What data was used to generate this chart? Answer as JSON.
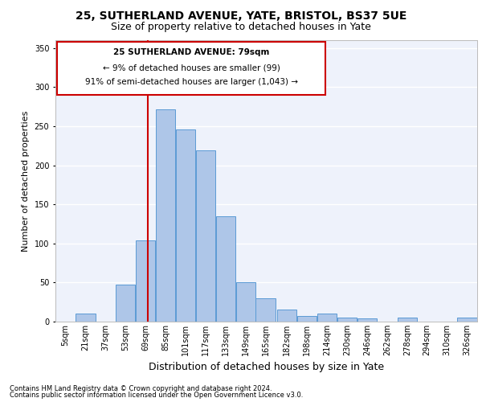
{
  "title1": "25, SUTHERLAND AVENUE, YATE, BRISTOL, BS37 5UE",
  "title2": "Size of property relative to detached houses in Yate",
  "xlabel": "Distribution of detached houses by size in Yate",
  "ylabel": "Number of detached properties",
  "footer1": "Contains HM Land Registry data © Crown copyright and database right 2024.",
  "footer2": "Contains public sector information licensed under the Open Government Licence v3.0.",
  "property_label": "25 SUTHERLAND AVENUE: 79sqm",
  "annotation_line1": "← 9% of detached houses are smaller (99)",
  "annotation_line2": "91% of semi-detached houses are larger (1,043) →",
  "bar_color": "#aec6e8",
  "bar_edge_color": "#5b9bd5",
  "red_line_x": 79,
  "categories": [
    "5sqm",
    "21sqm",
    "37sqm",
    "53sqm",
    "69sqm",
    "85sqm",
    "101sqm",
    "117sqm",
    "133sqm",
    "149sqm",
    "165sqm",
    "182sqm",
    "198sqm",
    "214sqm",
    "230sqm",
    "246sqm",
    "262sqm",
    "278sqm",
    "294sqm",
    "310sqm",
    "326sqm"
  ],
  "bin_edges": [
    5,
    21,
    37,
    53,
    69,
    85,
    101,
    117,
    133,
    149,
    165,
    182,
    198,
    214,
    230,
    246,
    262,
    278,
    294,
    310,
    326,
    342
  ],
  "values": [
    0,
    10,
    0,
    47,
    104,
    272,
    246,
    219,
    135,
    50,
    30,
    15,
    7,
    10,
    5,
    4,
    0,
    5,
    0,
    0,
    5
  ],
  "ylim": [
    0,
    360
  ],
  "yticks": [
    0,
    50,
    100,
    150,
    200,
    250,
    300,
    350
  ],
  "background_color": "#eef2fb",
  "grid_color": "#ffffff",
  "annotation_box_color": "#ffffff",
  "annotation_box_edge": "#cc0000",
  "red_line_color": "#cc0000",
  "title1_fontsize": 10,
  "title2_fontsize": 9,
  "xlabel_fontsize": 9,
  "ylabel_fontsize": 8,
  "tick_fontsize": 7,
  "footer_fontsize": 6,
  "annotation_fontsize": 7.5
}
